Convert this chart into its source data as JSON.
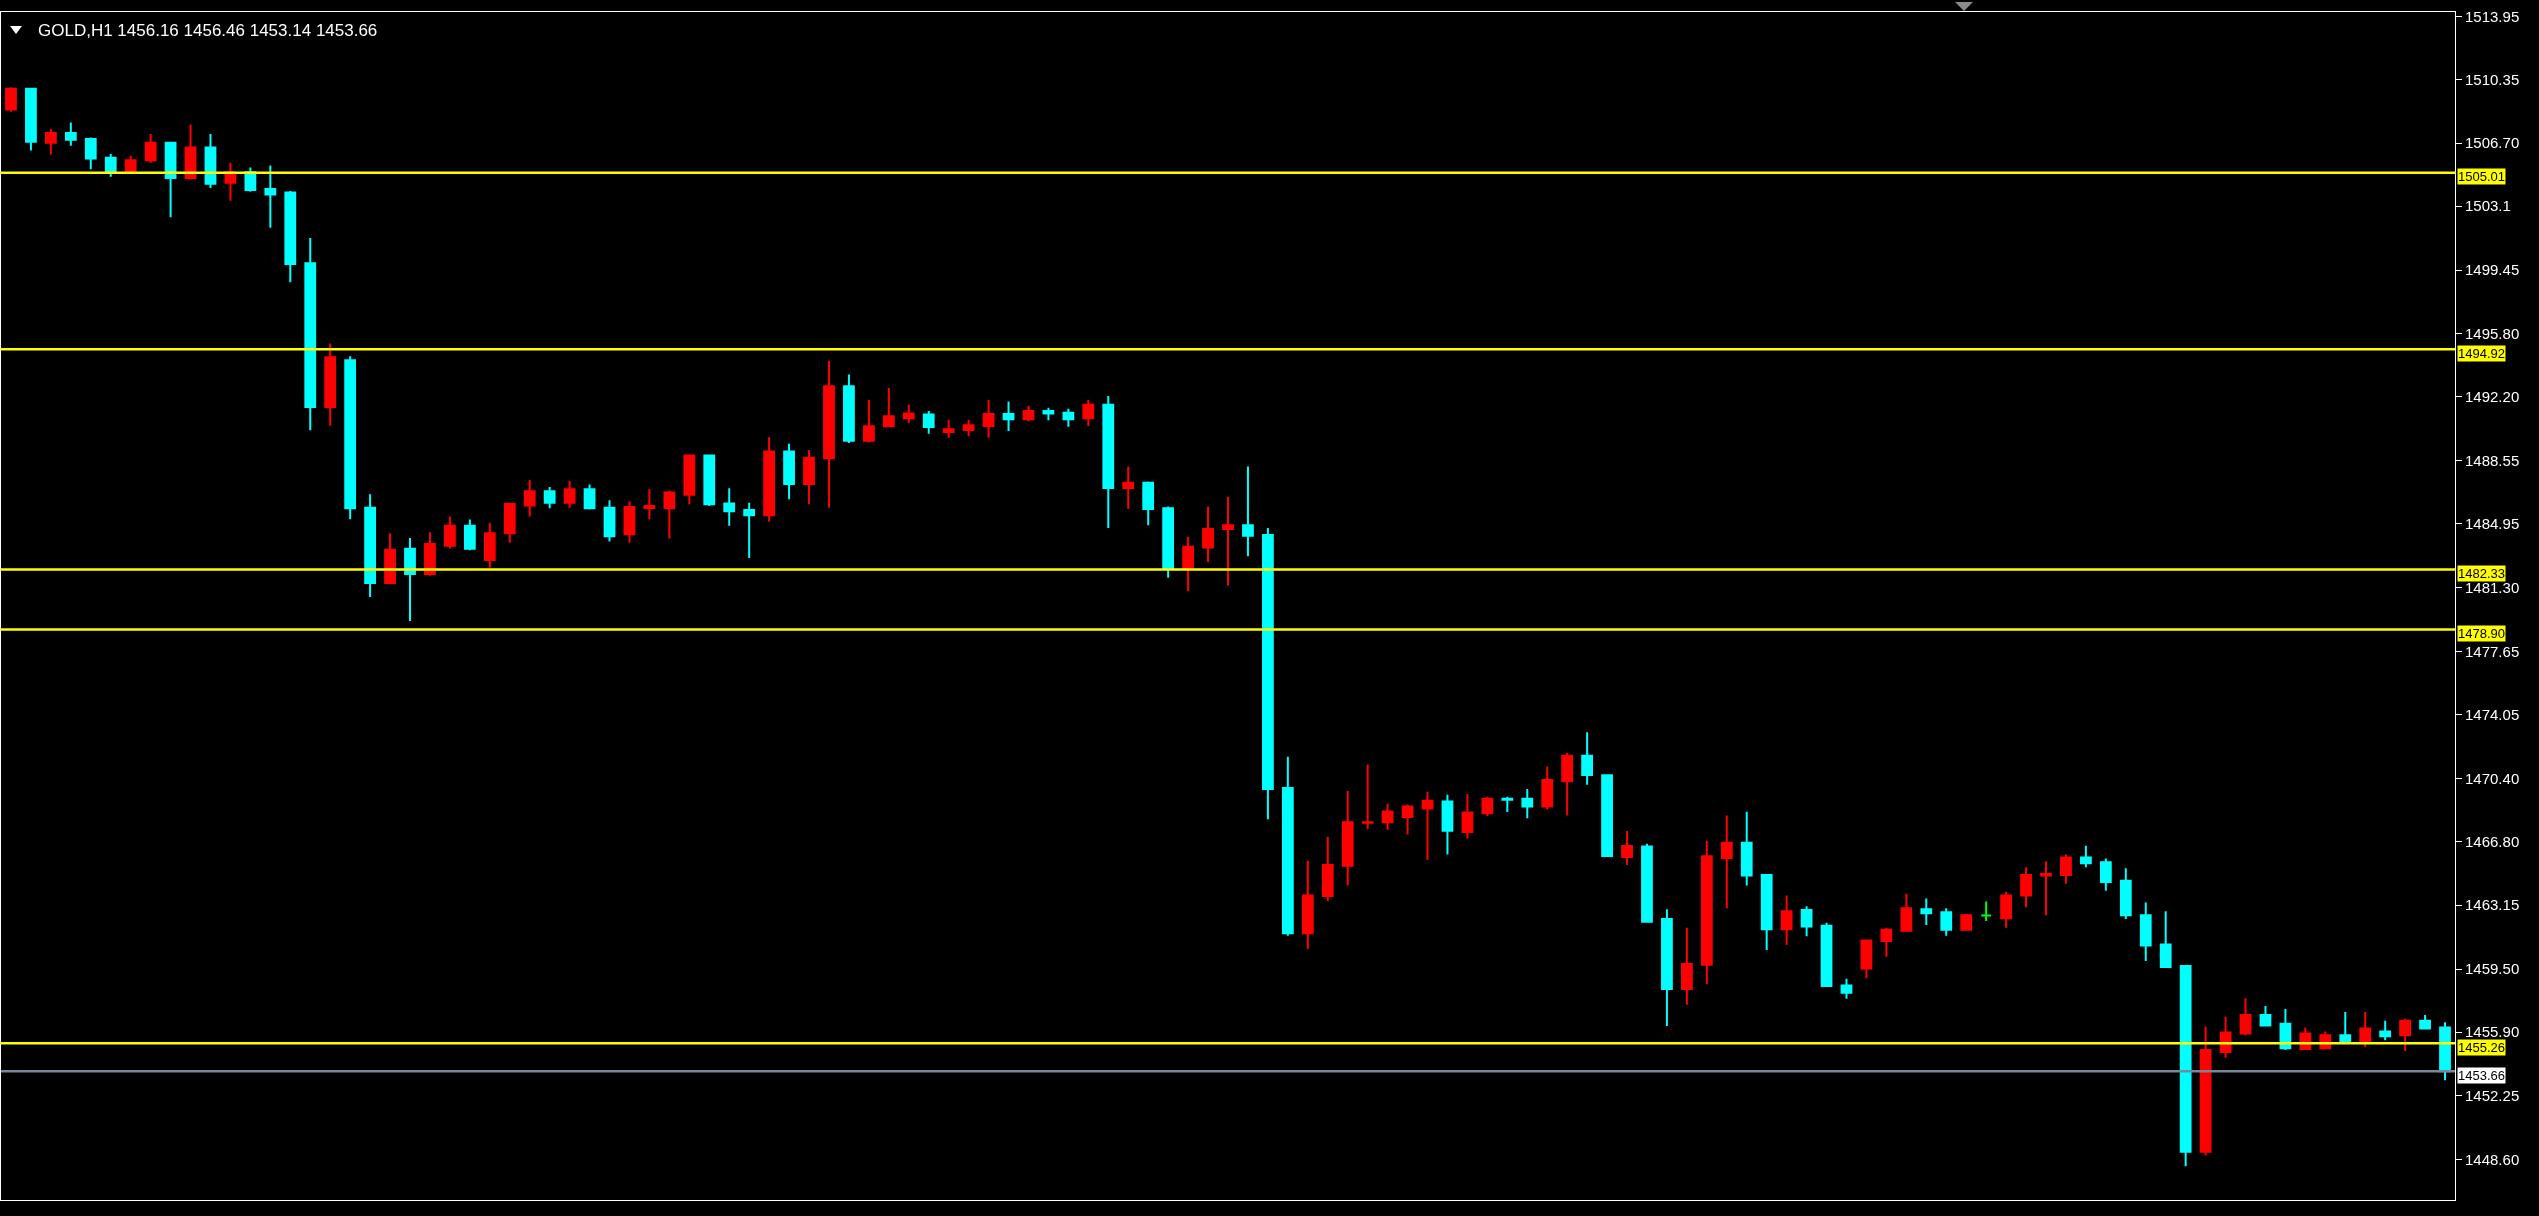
{
  "chart_data": {
    "type": "candlestick",
    "title": "GOLD,H1 1456.16 1456.46 1453.14 1453.66",
    "categories": [
      null,
      null,
      null,
      null,
      null,
      null,
      null,
      null,
      null,
      null,
      null,
      null,
      null,
      null,
      null,
      null,
      null,
      null,
      null,
      null,
      null,
      null,
      null,
      null,
      null,
      null,
      null,
      null,
      null,
      null,
      null,
      null,
      null,
      null,
      null,
      null,
      null,
      null,
      null,
      null,
      null,
      null,
      null,
      null,
      null,
      null,
      null,
      null,
      null,
      null,
      null,
      null,
      null,
      null,
      null,
      null,
      null,
      null,
      null,
      null,
      null,
      null,
      null,
      null,
      null,
      null,
      null,
      null,
      null,
      null,
      null,
      null,
      null,
      null,
      null,
      null,
      null,
      null,
      null,
      null,
      null,
      null,
      null,
      null,
      null,
      null,
      null,
      null,
      null,
      null,
      null,
      null,
      null,
      null,
      null,
      null,
      null,
      null,
      null,
      null,
      null,
      null,
      null,
      null,
      null,
      null,
      null,
      null,
      null,
      null,
      null,
      null,
      null,
      null,
      null,
      null,
      null,
      null,
      null,
      null,
      null,
      null,
      null
    ],
    "ohlc": [
      [
        1508.63,
        1509.9,
        1508.5,
        1509.81
      ],
      [
        1509.81,
        1509.85,
        1506.28,
        1506.79
      ],
      [
        1506.73,
        1507.5,
        1506.06,
        1507.28
      ],
      [
        1507.28,
        1507.88,
        1506.55,
        1506.9
      ],
      [
        1506.94,
        1507.03,
        1505.21,
        1505.83
      ],
      [
        1505.87,
        1506.08,
        1504.78,
        1505.08
      ],
      [
        1505.08,
        1505.98,
        1505.05,
        1505.72
      ],
      [
        1505.72,
        1507.22,
        1505.57,
        1506.73
      ],
      [
        1506.73,
        1506.75,
        1502.47,
        1504.71
      ],
      [
        1504.71,
        1507.77,
        1504.61,
        1506.45
      ],
      [
        1506.45,
        1507.22,
        1504.14,
        1504.39
      ],
      [
        1504.44,
        1505.59,
        1503.41,
        1505.04
      ],
      [
        1505.04,
        1505.31,
        1503.92,
        1504.03
      ],
      [
        1504.09,
        1505.42,
        1501.87,
        1503.77
      ],
      [
        1503.88,
        1503.97,
        1498.75,
        1499.8
      ],
      [
        1499.84,
        1501.29,
        1490.3,
        1491.62
      ],
      [
        1491.62,
        1495.26,
        1490.55,
        1494.47
      ],
      [
        1494.3,
        1494.52,
        1485.21,
        1485.83
      ],
      [
        1485.87,
        1486.64,
        1480.76,
        1481.57
      ],
      [
        1481.57,
        1484.41,
        1481.5,
        1483.47
      ],
      [
        1483.52,
        1484.14,
        1479.39,
        1482.08
      ],
      [
        1482.08,
        1484.46,
        1481.98,
        1483.79
      ],
      [
        1483.69,
        1485.36,
        1483.54,
        1484.84
      ],
      [
        1484.84,
        1485.19,
        1483.43,
        1483.52
      ],
      [
        1482.88,
        1484.99,
        1482.43,
        1484.41
      ],
      [
        1484.41,
        1486.13,
        1483.86,
        1486.08
      ],
      [
        1486.0,
        1487.45,
        1485.36,
        1486.81
      ],
      [
        1486.81,
        1487.05,
        1485.83,
        1486.15
      ],
      [
        1486.15,
        1487.39,
        1485.87,
        1486.92
      ],
      [
        1486.92,
        1487.2,
        1485.76,
        1485.83
      ],
      [
        1485.87,
        1486.3,
        1483.93,
        1484.24
      ],
      [
        1484.35,
        1486.23,
        1483.86,
        1485.91
      ],
      [
        1485.85,
        1486.92,
        1485.21,
        1485.96
      ],
      [
        1485.83,
        1486.85,
        1484.11,
        1486.73
      ],
      [
        1486.61,
        1488.9,
        1486.06,
        1488.85
      ],
      [
        1488.85,
        1488.9,
        1485.96,
        1486.06
      ],
      [
        1486.11,
        1486.98,
        1484.83,
        1485.67
      ],
      [
        1485.73,
        1486.15,
        1482.99,
        1485.44
      ],
      [
        1485.44,
        1489.9,
        1485.06,
        1489.08
      ],
      [
        1489.08,
        1489.52,
        1486.35,
        1487.23
      ],
      [
        1487.23,
        1489.17,
        1486.06,
        1488.73
      ],
      [
        1488.69,
        1494.27,
        1485.86,
        1492.81
      ],
      [
        1492.81,
        1493.48,
        1489.56,
        1489.69
      ],
      [
        1489.69,
        1492.02,
        1489.6,
        1490.52
      ],
      [
        1490.52,
        1492.71,
        1490.5,
        1491.1
      ],
      [
        1490.98,
        1491.75,
        1490.71,
        1491.25
      ],
      [
        1491.19,
        1491.4,
        1490.1,
        1490.48
      ],
      [
        1490.19,
        1490.89,
        1489.87,
        1490.35
      ],
      [
        1490.31,
        1490.89,
        1489.96,
        1490.58
      ],
      [
        1490.54,
        1492.02,
        1489.87,
        1491.23
      ],
      [
        1491.23,
        1491.94,
        1490.25,
        1490.92
      ],
      [
        1490.92,
        1491.69,
        1490.81,
        1491.4
      ],
      [
        1491.4,
        1491.58,
        1490.87,
        1491.25
      ],
      [
        1491.29,
        1491.52,
        1490.5,
        1490.92
      ],
      [
        1490.98,
        1492.02,
        1490.52,
        1491.75
      ],
      [
        1491.75,
        1492.25,
        1484.71,
        1487.0
      ],
      [
        1487.0,
        1488.23,
        1485.79,
        1487.29
      ],
      [
        1487.29,
        1487.37,
        1484.86,
        1485.79
      ],
      [
        1485.83,
        1485.94,
        1481.86,
        1482.38
      ],
      [
        1482.38,
        1484.21,
        1481.09,
        1483.63
      ],
      [
        1483.59,
        1485.94,
        1482.75,
        1484.65
      ],
      [
        1484.65,
        1486.5,
        1481.42,
        1484.86
      ],
      [
        1484.86,
        1488.23,
        1483.09,
        1484.27
      ],
      [
        1484.31,
        1484.71,
        1468.06,
        1469.79
      ],
      [
        1469.85,
        1471.64,
        1461.41,
        1461.54
      ],
      [
        1461.54,
        1465.71,
        1460.65,
        1463.7
      ],
      [
        1463.67,
        1467.06,
        1463.39,
        1465.44
      ],
      [
        1465.4,
        1469.68,
        1464.28,
        1467.89
      ],
      [
        1467.86,
        1471.19,
        1467.5,
        1467.89
      ],
      [
        1467.89,
        1468.95,
        1467.46,
        1468.51
      ],
      [
        1468.19,
        1468.9,
        1467.19,
        1468.79
      ],
      [
        1468.68,
        1469.63,
        1465.73,
        1469.12
      ],
      [
        1469.07,
        1469.46,
        1466.05,
        1467.41
      ],
      [
        1467.33,
        1469.51,
        1466.96,
        1468.45
      ],
      [
        1468.41,
        1469.35,
        1468.25,
        1469.23
      ],
      [
        1469.23,
        1469.35,
        1468.47,
        1469.18
      ],
      [
        1469.23,
        1469.79,
        1468.12,
        1468.79
      ],
      [
        1468.79,
        1471.08,
        1468.62,
        1470.3
      ],
      [
        1470.24,
        1471.86,
        1468.28,
        1471.69
      ],
      [
        1471.69,
        1473.03,
        1470.03,
        1470.59
      ],
      [
        1470.57,
        1470.63,
        1465.9,
        1465.96
      ],
      [
        1465.9,
        1467.39,
        1465.45,
        1466.53
      ],
      [
        1466.5,
        1466.66,
        1462.19,
        1462.21
      ],
      [
        1462.36,
        1462.92,
        1456.24,
        1458.36
      ],
      [
        1458.36,
        1461.86,
        1457.46,
        1459.79
      ],
      [
        1459.74,
        1466.83,
        1458.64,
        1465.94
      ],
      [
        1465.84,
        1468.28,
        1462.98,
        1466.72
      ],
      [
        1466.72,
        1468.49,
        1464.28,
        1464.84
      ],
      [
        1464.88,
        1464.9,
        1460.59,
        1461.77
      ],
      [
        1461.77,
        1463.7,
        1460.87,
        1462.81
      ],
      [
        1462.87,
        1463.09,
        1461.38,
        1461.93
      ],
      [
        1461.97,
        1462.14,
        1458.5,
        1458.53
      ],
      [
        1458.56,
        1458.95,
        1457.8,
        1458.14
      ],
      [
        1459.53,
        1461.19,
        1458.97,
        1461.13
      ],
      [
        1461.1,
        1461.86,
        1460.2,
        1461.75
      ],
      [
        1461.69,
        1463.81,
        1461.67,
        1462.97
      ],
      [
        1462.92,
        1463.53,
        1462.02,
        1462.69
      ],
      [
        1462.75,
        1462.97,
        1461.41,
        1461.74
      ],
      [
        1461.74,
        1462.64,
        1461.72,
        1462.58
      ],
      [
        1462.56,
        1463.36,
        1462.25,
        1462.56
      ],
      [
        1462.41,
        1463.92,
        1461.86,
        1463.7
      ],
      [
        1463.7,
        1465.32,
        1463.03,
        1464.87
      ],
      [
        1464.84,
        1465.66,
        1462.58,
        1464.93
      ],
      [
        1464.87,
        1466.05,
        1464.37,
        1465.88
      ],
      [
        1465.88,
        1466.55,
        1465.32,
        1465.54
      ],
      [
        1465.6,
        1465.82,
        1463.98,
        1464.48
      ],
      [
        1464.54,
        1465.26,
        1462.36,
        1462.58
      ],
      [
        1462.58,
        1463.31,
        1459.96,
        1460.85
      ],
      [
        1460.91,
        1462.81,
        1459.57,
        1459.62
      ],
      [
        1459.68,
        1459.68,
        1448.23,
        1449.06
      ],
      [
        1449.06,
        1456.21,
        1448.84,
        1454.87
      ],
      [
        1454.76,
        1456.77,
        1454.43,
        1455.88
      ],
      [
        1455.82,
        1457.83,
        1455.71,
        1456.88
      ],
      [
        1456.88,
        1457.39,
        1456.25,
        1456.27
      ],
      [
        1456.38,
        1457.22,
        1454.87,
        1454.98
      ],
      [
        1454.93,
        1456.16,
        1454.87,
        1455.82
      ],
      [
        1454.98,
        1455.93,
        1454.96,
        1455.71
      ],
      [
        1455.71,
        1457.05,
        1455.32,
        1455.38
      ],
      [
        1455.38,
        1457.05,
        1455.04,
        1456.1
      ],
      [
        1455.93,
        1456.55,
        1455.43,
        1455.66
      ],
      [
        1455.71,
        1456.66,
        1454.82,
        1456.55
      ],
      [
        1456.55,
        1456.88,
        1456.05,
        1456.1
      ],
      [
        1456.16,
        1456.46,
        1453.14,
        1453.66
      ]
    ],
    "colors": [
      "#ff0000",
      "#00ffff",
      "#ff0000",
      "#00ffff",
      "#00ffff",
      "#00ffff",
      "#ff0000",
      "#ff0000",
      "#00ffff",
      "#ff0000",
      "#00ffff",
      "#ff0000",
      "#00ffff",
      "#00ffff",
      "#00ffff",
      "#00ffff",
      "#ff0000",
      "#00ffff",
      "#00ffff",
      "#ff0000",
      "#00ffff",
      "#ff0000",
      "#ff0000",
      "#00ffff",
      "#ff0000",
      "#ff0000",
      "#ff0000",
      "#00ffff",
      "#ff0000",
      "#00ffff",
      "#00ffff",
      "#ff0000",
      "#ff0000",
      "#ff0000",
      "#ff0000",
      "#00ffff",
      "#00ffff",
      "#00ffff",
      "#ff0000",
      "#00ffff",
      "#ff0000",
      "#ff0000",
      "#00ffff",
      "#ff0000",
      "#ff0000",
      "#ff0000",
      "#00ffff",
      "#ff0000",
      "#ff0000",
      "#ff0000",
      "#00ffff",
      "#ff0000",
      "#00ffff",
      "#00ffff",
      "#ff0000",
      "#00ffff",
      "#ff0000",
      "#00ffff",
      "#00ffff",
      "#ff0000",
      "#ff0000",
      "#ff0000",
      "#00ffff",
      "#00ffff",
      "#00ffff",
      "#ff0000",
      "#ff0000",
      "#ff0000",
      "#ff0000",
      "#ff0000",
      "#ff0000",
      "#ff0000",
      "#00ffff",
      "#ff0000",
      "#ff0000",
      "#00ffff",
      "#00ffff",
      "#ff0000",
      "#ff0000",
      "#00ffff",
      "#00ffff",
      "#ff0000",
      "#00ffff",
      "#00ffff",
      "#ff0000",
      "#ff0000",
      "#ff0000",
      "#00ffff",
      "#00ffff",
      "#ff0000",
      "#00ffff",
      "#00ffff",
      "#00ffff",
      "#ff0000",
      "#ff0000",
      "#ff0000",
      "#00ffff",
      "#00ffff",
      "#ff0000",
      "#00ff00",
      "#ff0000",
      "#ff0000",
      "#ff0000",
      "#ff0000",
      "#00ffff",
      "#00ffff",
      "#00ffff",
      "#00ffff",
      "#00ffff",
      "#00ffff",
      "#ff0000",
      "#ff0000",
      "#ff0000",
      "#00ffff",
      "#00ffff",
      "#ff0000",
      "#ff0000",
      "#00ffff",
      "#ff0000",
      "#00ffff",
      "#ff0000",
      "#00ffff",
      "#00ffff"
    ],
    "ylim": [
      1446.3,
      1514.2
    ],
    "yticks": [
      1513.95,
      1510.35,
      {
        "value": 1506.7,
        "label": "1506.70"
      },
      1503.1,
      1499.45,
      {
        "value": 1495.8,
        "label": "1495.80"
      },
      {
        "value": 1492.2,
        "label": "1492.20"
      },
      1488.55,
      1484.95,
      {
        "value": 1481.3,
        "label": "1481.30"
      },
      1477.65,
      1474.05,
      {
        "value": 1470.4,
        "label": "1470.40"
      },
      {
        "value": 1466.8,
        "label": "1466.80"
      },
      1463.15,
      {
        "value": 1459.5,
        "label": "1459.50"
      },
      {
        "value": 1455.9,
        "label": "1455.90"
      },
      1452.25,
      {
        "value": 1448.6,
        "label": "1448.60"
      }
    ],
    "ref_lines": [
      {
        "axis": "y",
        "value": 1505.01,
        "label": "1505.01",
        "color": "#ffff00"
      },
      {
        "axis": "y",
        "value": 1494.92,
        "label": "1494.92",
        "color": "#ffff00"
      },
      {
        "axis": "y",
        "value": 1482.33,
        "label": "1482.33",
        "color": "#ffff00"
      },
      {
        "axis": "y",
        "value": 1478.9,
        "label": "1478.90",
        "color": "#ffff00"
      },
      {
        "axis": "y",
        "value": 1455.26,
        "label": "1455.26",
        "color": "#ffff00"
      },
      {
        "axis": "y",
        "value": 1453.66,
        "label": "1453.66",
        "color": "#778899"
      }
    ]
  }
}
